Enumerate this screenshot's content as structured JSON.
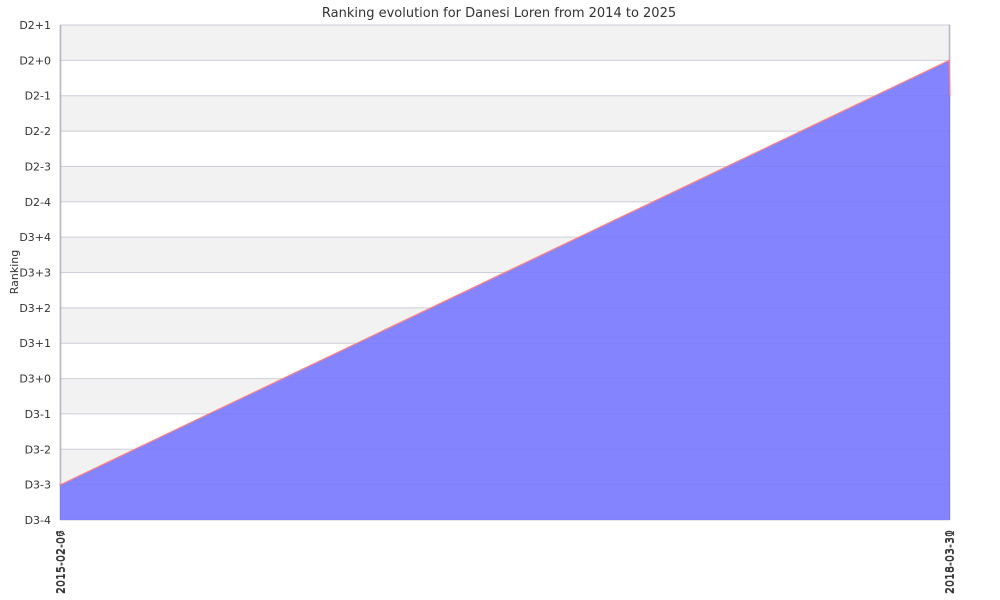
{
  "chart_data": {
    "type": "area",
    "title": "Ranking evolution for Danesi Loren from 2014 to 2025",
    "xlabel": "",
    "ylabel": "Ranking",
    "y_tick_labels": [
      "D2+1",
      "D2+0",
      "D2-1",
      "D2-2",
      "D2-3",
      "D2-4",
      "D3+4",
      "D3+3",
      "D3+2",
      "D3+1",
      "D3+0",
      "D3-1",
      "D3-2",
      "D3-3",
      "D3-4"
    ],
    "x": [
      "2015-02-06",
      "2015-02-07",
      "2018-03-30",
      "2018-03-31"
    ],
    "series": [
      {
        "values": [
          "D3-3",
          "D3-3",
          "D2+0",
          "D2-1"
        ]
      }
    ],
    "ylim": [
      "D3-4",
      "D2+1"
    ],
    "grid": "horizontal bands",
    "legend": "none",
    "colors": {
      "area_fill": "#8080ff",
      "line": "#ff8080",
      "band": "#f2f2f2",
      "grid": "#dddddd",
      "vertical_grid": "#cccccc"
    }
  }
}
